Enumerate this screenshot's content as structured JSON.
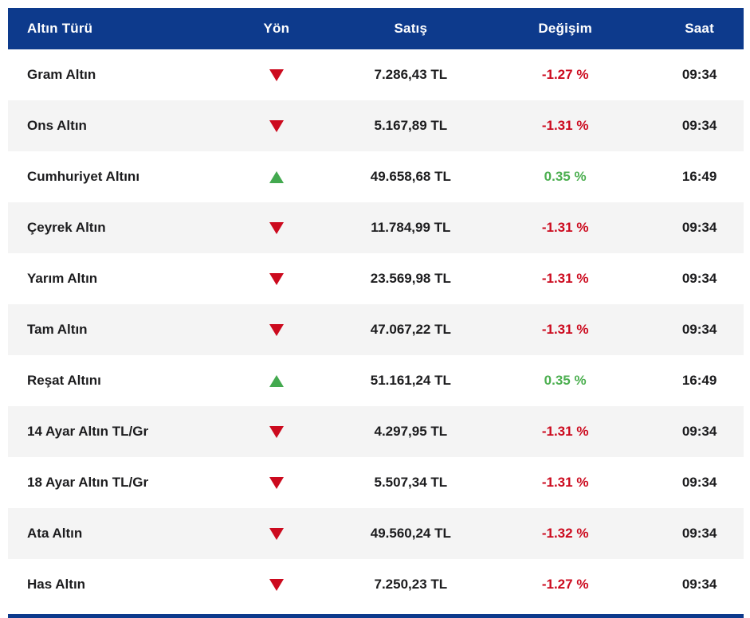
{
  "colors": {
    "header_bg": "#0d3a8c",
    "down_red": "#cc0a1e",
    "up_green": "#4caf50",
    "row_alt_bg": "#f4f4f4",
    "row_text": "#1c1c1e"
  },
  "table": {
    "columns": [
      {
        "label": "Altın Türü"
      },
      {
        "label": "Yön"
      },
      {
        "label": "Satış"
      },
      {
        "label": "Değişim"
      },
      {
        "label": "Saat"
      }
    ],
    "rows": [
      {
        "type": "Gram Altın",
        "direction": "down",
        "price": "7.286,43 TL",
        "change": "-1.27 %",
        "time": "09:34"
      },
      {
        "type": "Ons Altın",
        "direction": "down",
        "price": "5.167,89 TL",
        "change": "-1.31 %",
        "time": "09:34"
      },
      {
        "type": "Cumhuriyet Altını",
        "direction": "up",
        "price": "49.658,68 TL",
        "change": "0.35 %",
        "time": "16:49"
      },
      {
        "type": "Çeyrek Altın",
        "direction": "down",
        "price": "11.784,99 TL",
        "change": "-1.31 %",
        "time": "09:34"
      },
      {
        "type": "Yarım Altın",
        "direction": "down",
        "price": "23.569,98 TL",
        "change": "-1.31 %",
        "time": "09:34"
      },
      {
        "type": "Tam Altın",
        "direction": "down",
        "price": "47.067,22 TL",
        "change": "-1.31 %",
        "time": "09:34"
      },
      {
        "type": "Reşat Altını",
        "direction": "up",
        "price": "51.161,24 TL",
        "change": "0.35 %",
        "time": "16:49"
      },
      {
        "type": "14 Ayar Altın TL/Gr",
        "direction": "down",
        "price": "4.297,95 TL",
        "change": "-1.31 %",
        "time": "09:34"
      },
      {
        "type": "18 Ayar Altın TL/Gr",
        "direction": "down",
        "price": "5.507,34 TL",
        "change": "-1.31 %",
        "time": "09:34"
      },
      {
        "type": "Ata Altın",
        "direction": "down",
        "price": "49.560,24 TL",
        "change": "-1.32 %",
        "time": "09:34"
      },
      {
        "type": "Has Altın",
        "direction": "down",
        "price": "7.250,23 TL",
        "change": "-1.27 %",
        "time": "09:34"
      }
    ]
  }
}
